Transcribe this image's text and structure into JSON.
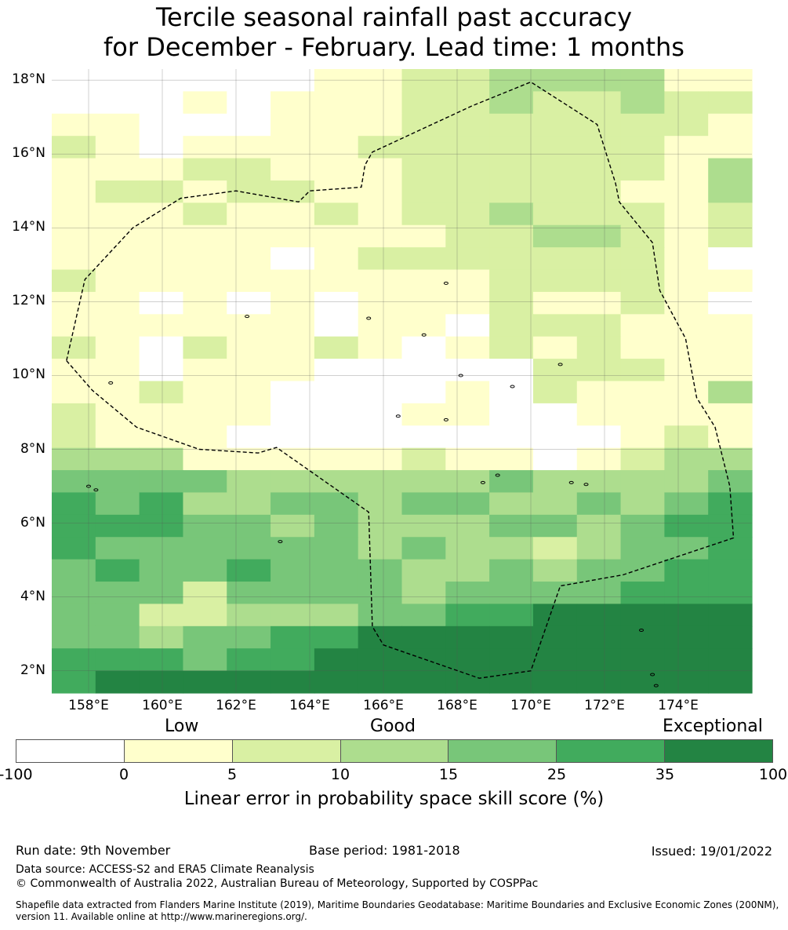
{
  "title": {
    "line1": "Tercile seasonal rainfall past accuracy",
    "line2": "for December - February. Lead time: 1 months"
  },
  "map": {
    "lat_range": [
      1.4,
      18.3
    ],
    "lon_range": [
      157.0,
      176.0
    ],
    "lat_labels": [
      "2°N",
      "4°N",
      "6°N",
      "8°N",
      "10°N",
      "12°N",
      "14°N",
      "16°N",
      "18°N"
    ],
    "lat_values": [
      2,
      4,
      6,
      8,
      10,
      12,
      14,
      16,
      18
    ],
    "lon_labels": [
      "158°E",
      "160°E",
      "162°E",
      "164°E",
      "166°E",
      "168°E",
      "170°E",
      "172°E",
      "174°E"
    ],
    "lon_values": [
      158,
      160,
      162,
      164,
      166,
      168,
      170,
      172,
      174
    ],
    "grid_rows": [
      "0000001122333311",
      "0001011122322322",
      "1100011122222221",
      "2101111222222211",
      "1112211122222213",
      "1221221122222113",
      "1112112122322212",
      "1111111112233212",
      "1111101222222210",
      "2111111111222211",
      "1101010111211210",
      "1111110110222111",
      "2102112101212111",
      "1101110000022211",
      "1121100001021113",
      "2111100011001111",
      "2111000000000121",
      "3331111121101233",
      "4444333333433334",
      "5453344344334345",
      "5554434333443455",
      "5444444343323445",
      "4544544433434455",
      "4442444434444555",
      "4422333445566666",
      "4434455666666666",
      "5554556666666666",
      "5666666666666666"
    ],
    "zone_path": [
      [
        157.4,
        10.4
      ],
      [
        158.1,
        9.6
      ],
      [
        159.3,
        8.6
      ],
      [
        161.0,
        8.0
      ],
      [
        162.6,
        7.9
      ],
      [
        163.1,
        8.05
      ],
      [
        165.6,
        6.3
      ],
      [
        165.7,
        3.2
      ],
      [
        166.0,
        2.7
      ],
      [
        168.6,
        1.8
      ],
      [
        170.0,
        2.0
      ],
      [
        170.8,
        4.3
      ],
      [
        172.5,
        4.6
      ],
      [
        175.5,
        5.6
      ],
      [
        175.4,
        7.0
      ],
      [
        175.0,
        8.6
      ],
      [
        174.5,
        9.4
      ],
      [
        174.2,
        11.0
      ],
      [
        173.5,
        12.3
      ],
      [
        173.3,
        13.6
      ],
      [
        172.4,
        14.7
      ],
      [
        172.3,
        15.2
      ],
      [
        171.8,
        16.8
      ],
      [
        170.0,
        17.95
      ],
      [
        168.4,
        17.3
      ],
      [
        165.7,
        16.05
      ],
      [
        165.5,
        15.7
      ],
      [
        165.4,
        15.1
      ],
      [
        164.0,
        15.0
      ],
      [
        163.7,
        14.7
      ],
      [
        162.0,
        15.0
      ],
      [
        160.5,
        14.8
      ],
      [
        159.2,
        14.0
      ],
      [
        157.9,
        12.6
      ],
      [
        157.4,
        10.4
      ]
    ],
    "islands": [
      [
        158.2,
        6.9
      ],
      [
        158.0,
        7.0
      ],
      [
        165.6,
        11.55
      ],
      [
        167.1,
        11.1
      ],
      [
        171.1,
        7.1
      ],
      [
        171.5,
        7.05
      ],
      [
        169.1,
        7.3
      ],
      [
        167.7,
        8.8
      ],
      [
        173.0,
        3.1
      ],
      [
        173.3,
        1.9
      ],
      [
        173.4,
        1.6
      ],
      [
        169.5,
        9.7
      ],
      [
        168.7,
        7.1
      ],
      [
        170.8,
        10.3
      ],
      [
        166.4,
        8.9
      ],
      [
        163.2,
        5.5
      ],
      [
        158.6,
        9.8
      ],
      [
        162.3,
        11.6
      ],
      [
        167.7,
        12.5
      ],
      [
        168.1,
        10.0
      ]
    ]
  },
  "legend": {
    "category_low": "Low",
    "category_good": "Good",
    "category_exceptional": "Exceptional",
    "colors": [
      "#ffffff",
      "#ffffcc",
      "#d9f0a3",
      "#addd8e",
      "#78c679",
      "#41ab5d",
      "#238443"
    ],
    "ticks": [
      "-100",
      "0",
      "5",
      "10",
      "15",
      "25",
      "35",
      "100"
    ],
    "label": "Linear error in probability space skill score (%)"
  },
  "footer": {
    "run_date": "Run date: 9th November",
    "base_period": "Base period: 1981-2018",
    "issued": "Issued: 19/01/2022",
    "data_source": "Data source: ACCESS-S2 and ERA5 Climate Reanalysis",
    "copyright": "© Commonwealth of Australia 2022, Australian Bureau of Meteorology, Supported by COSPPac",
    "shapefile": "Shapefile data extracted from Flanders Marine Institute (2019), Maritime Boundaries Geodatabase: Maritime Boundaries and Exclusive Economic Zones (200NM), version 11. Available online at http://www.marineregions.org/."
  }
}
